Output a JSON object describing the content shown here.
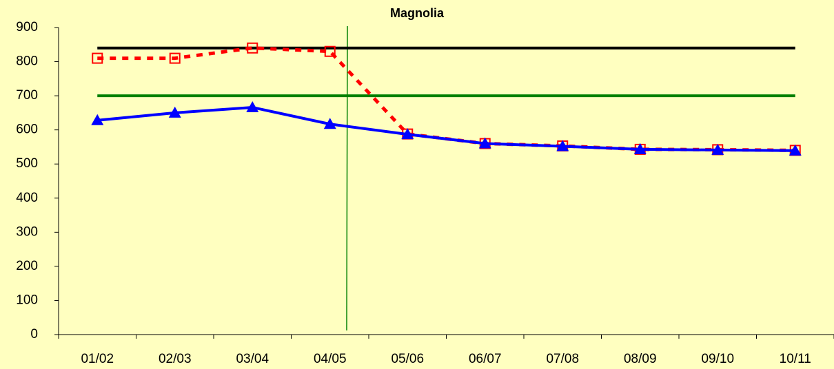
{
  "chart_data": {
    "type": "line",
    "title": "Magnolia",
    "categories": [
      "01/02",
      "02/03",
      "03/04",
      "04/05",
      "05/06",
      "06/07",
      "07/08",
      "08/09",
      "09/10",
      "10/11"
    ],
    "series": [
      {
        "color": "#000000",
        "style": "solid",
        "values": [
          840,
          840,
          840,
          840,
          840,
          840,
          840,
          840,
          840,
          840
        ]
      },
      {
        "color": "#008000",
        "style": "solid",
        "values": [
          700,
          700,
          700,
          700,
          700,
          700,
          700,
          700,
          700,
          700
        ]
      },
      {
        "color": "#ff0000",
        "style": "dashed",
        "marker": "square",
        "values": [
          810,
          810,
          840,
          830,
          588,
          560,
          553,
          543,
          542,
          540
        ]
      },
      {
        "color": "#0000ff",
        "style": "solid",
        "marker": "triangle",
        "values": [
          628,
          650,
          666,
          617,
          587,
          560,
          552,
          543,
          541,
          539
        ]
      }
    ],
    "ylim": [
      0,
      900
    ],
    "yticks": [
      0,
      100,
      200,
      300,
      400,
      500,
      600,
      700,
      800,
      900
    ]
  }
}
